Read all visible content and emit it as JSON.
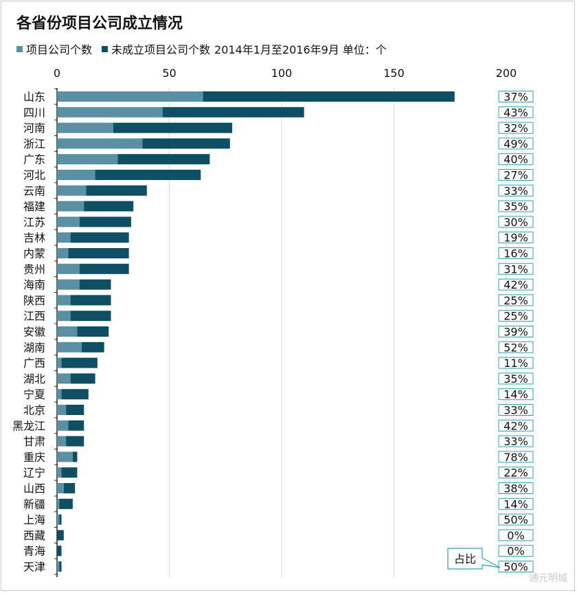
{
  "title": "各省份项目公司成立情况",
  "legend": {
    "items": [
      {
        "label": "项目公司个数",
        "color": "#5b8fa3"
      },
      {
        "label": "未成立项目公司个数",
        "color": "#0f4f63"
      }
    ],
    "note": "2014年1月至2016年9月   单位：个"
  },
  "callout_label": "占比",
  "watermark": "通元明城",
  "chart_data": {
    "type": "bar",
    "orientation": "horizontal",
    "stacked": true,
    "xlim": [
      0,
      200
    ],
    "xticks": [
      "0",
      "50",
      "100",
      "150",
      "200"
    ],
    "grid": true,
    "legend_position": "top-left",
    "categories": [
      "山东",
      "四川",
      "河南",
      "浙江",
      "广东",
      "河北",
      "云南",
      "福建",
      "江苏",
      "吉林",
      "内蒙",
      "贵州",
      "海南",
      "陕西",
      "江西",
      "安徽",
      "湖南",
      "广西",
      "湖北",
      "宁夏",
      "北京",
      "黑龙江",
      "甘肃",
      "重庆",
      "辽宁",
      "山西",
      "新疆",
      "上海",
      "西藏",
      "青海",
      "天津"
    ],
    "series": [
      {
        "name": "项目公司个数",
        "color": "#5b8fa3",
        "values": [
          65,
          47,
          25,
          38,
          27,
          17,
          13,
          12,
          10,
          6,
          5,
          10,
          10,
          6,
          6,
          9,
          11,
          2,
          6,
          2,
          4,
          5,
          4,
          7,
          2,
          3,
          1,
          1,
          0,
          0,
          1
        ]
      },
      {
        "name": "未成立项目公司个数",
        "color": "#0f4f63",
        "values": [
          112,
          63,
          53,
          39,
          41,
          47,
          27,
          22,
          23,
          26,
          27,
          22,
          14,
          18,
          18,
          14,
          10,
          16,
          11,
          12,
          8,
          7,
          8,
          2,
          7,
          5,
          6,
          1,
          3,
          2,
          1
        ]
      }
    ],
    "ratio_labels": [
      "37%",
      "43%",
      "32%",
      "49%",
      "40%",
      "27%",
      "33%",
      "35%",
      "30%",
      "19%",
      "16%",
      "31%",
      "42%",
      "25%",
      "25%",
      "39%",
      "52%",
      "11%",
      "35%",
      "14%",
      "33%",
      "42%",
      "33%",
      "78%",
      "22%",
      "38%",
      "14%",
      "50%",
      "0%",
      "0%",
      "50%"
    ]
  }
}
